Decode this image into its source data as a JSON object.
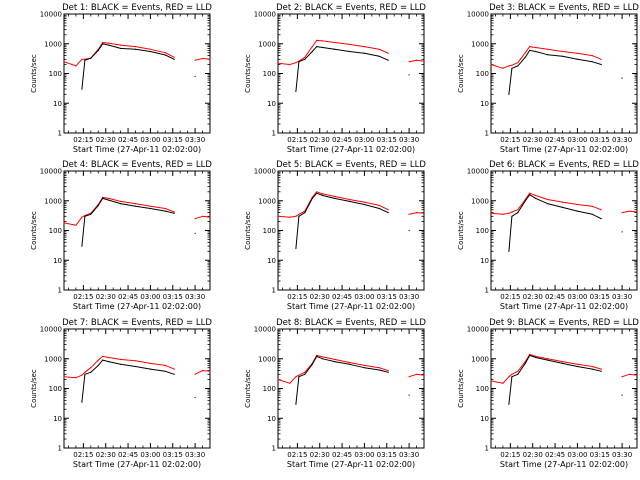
{
  "figure": {
    "background": "#ffffff",
    "axis_color": "#000000",
    "series_colors": {
      "events": "#000000",
      "lld": "#ff0000"
    }
  },
  "chart_data": [
    {
      "type": "line",
      "title": "Det 1: BLACK = Events, RED = LLD",
      "xlabel": "Start Time (27-Apr-11 02:02:00)",
      "ylabel": "Counts/sec",
      "y_scale": "log",
      "ylim": [
        1,
        10000
      ],
      "y_ticks": [
        1,
        10,
        100,
        1000,
        10000
      ],
      "y_tick_labels": [
        "1",
        "10",
        "100",
        "1000",
        "10000"
      ],
      "xlim": [
        "02:02",
        "03:40"
      ],
      "x_ticks": [
        "02:15",
        "02:30",
        "02:45",
        "03:00",
        "03:15",
        "03:30"
      ],
      "x": [
        "02:02",
        "02:10",
        "02:14",
        "02:16",
        "02:20",
        "02:25",
        "02:28",
        "02:32",
        "02:40",
        "02:50",
        "03:00",
        "03:10",
        "03:16",
        "03:27",
        "03:30",
        "03:35",
        "03:40"
      ],
      "series": [
        {
          "values": [
            null,
            null,
            30,
            280,
            330,
            600,
            1000,
            900,
            700,
            650,
            550,
            420,
            300,
            null,
            80,
            null,
            null
          ]
        },
        {
          "values": [
            250,
            180,
            300,
            300,
            330,
            650,
            1100,
            1050,
            900,
            800,
            650,
            500,
            350,
            null,
            280,
            320,
            300
          ]
        }
      ]
    },
    {
      "type": "line",
      "title": "Det 2: BLACK = Events, RED = LLD",
      "xlabel": "Start Time (27-Apr-11 02:02:00)",
      "ylabel": "Counts/sec",
      "y_scale": "log",
      "ylim": [
        1,
        10000
      ],
      "y_ticks": [
        1,
        10,
        100,
        1000,
        10000
      ],
      "y_tick_labels": [
        "1",
        "10",
        "100",
        "1000",
        "10000"
      ],
      "xlim": [
        "02:02",
        "03:40"
      ],
      "x_ticks": [
        "02:15",
        "02:30",
        "02:45",
        "03:00",
        "03:15",
        "03:30"
      ],
      "x": [
        "02:02",
        "02:10",
        "02:14",
        "02:16",
        "02:20",
        "02:25",
        "02:28",
        "02:32",
        "02:40",
        "02:50",
        "03:00",
        "03:10",
        "03:16",
        "03:27",
        "03:30",
        "03:35",
        "03:40"
      ],
      "series": [
        {
          "values": [
            null,
            null,
            25,
            250,
            300,
            550,
            800,
            750,
            650,
            550,
            480,
            380,
            280,
            null,
            90,
            null,
            null
          ]
        },
        {
          "values": [
            220,
            200,
            230,
            260,
            350,
            800,
            1300,
            1250,
            1100,
            950,
            800,
            650,
            480,
            null,
            250,
            280,
            260
          ]
        }
      ]
    },
    {
      "type": "line",
      "title": "Det 3: BLACK = Events, RED = LLD",
      "xlabel": "Start Time (27-Apr-11 02:02:00)",
      "ylabel": "Counts/sec",
      "y_scale": "log",
      "ylim": [
        1,
        10000
      ],
      "y_ticks": [
        1,
        10,
        100,
        1000,
        10000
      ],
      "y_tick_labels": [
        "1",
        "10",
        "100",
        "1000",
        "10000"
      ],
      "xlim": [
        "02:02",
        "03:40"
      ],
      "x_ticks": [
        "02:15",
        "02:30",
        "02:45",
        "03:00",
        "03:15",
        "03:30"
      ],
      "x": [
        "02:02",
        "02:10",
        "02:14",
        "02:16",
        "02:20",
        "02:25",
        "02:28",
        "02:32",
        "02:40",
        "02:50",
        "03:00",
        "03:10",
        "03:16",
        "03:27",
        "03:30",
        "03:35",
        "03:40"
      ],
      "series": [
        {
          "values": [
            null,
            null,
            20,
            150,
            180,
            350,
            600,
            550,
            430,
            380,
            300,
            250,
            200,
            null,
            70,
            null,
            null
          ]
        },
        {
          "values": [
            200,
            150,
            180,
            190,
            230,
            500,
            800,
            750,
            650,
            550,
            480,
            400,
            300,
            null,
            null,
            null,
            null
          ]
        }
      ]
    },
    {
      "type": "line",
      "title": "Det 4: BLACK = Events, RED = LLD",
      "xlabel": "Start Time (27-Apr-11 02:02:00)",
      "ylabel": "Counts/sec",
      "y_scale": "log",
      "ylim": [
        1,
        10000
      ],
      "y_ticks": [
        1,
        10,
        100,
        1000,
        10000
      ],
      "y_tick_labels": [
        "1",
        "10",
        "100",
        "1000",
        "10000"
      ],
      "xlim": [
        "02:02",
        "03:40"
      ],
      "x_ticks": [
        "02:15",
        "02:30",
        "02:45",
        "03:00",
        "03:15",
        "03:30"
      ],
      "x": [
        "02:02",
        "02:10",
        "02:14",
        "02:16",
        "02:20",
        "02:25",
        "02:28",
        "02:32",
        "02:40",
        "02:50",
        "03:00",
        "03:10",
        "03:16",
        "03:27",
        "03:30",
        "03:35",
        "03:40"
      ],
      "series": [
        {
          "values": [
            null,
            null,
            30,
            300,
            350,
            700,
            1200,
            1050,
            800,
            650,
            550,
            450,
            380,
            null,
            80,
            null,
            null
          ]
        },
        {
          "values": [
            180,
            150,
            280,
            320,
            380,
            750,
            1300,
            1200,
            950,
            800,
            650,
            550,
            420,
            null,
            250,
            300,
            280
          ]
        }
      ]
    },
    {
      "type": "line",
      "title": "Det 5: BLACK = Events, RED = LLD",
      "xlabel": "Start Time (27-Apr-11 02:02:00)",
      "ylabel": "Counts/sec",
      "y_scale": "log",
      "ylim": [
        1,
        10000
      ],
      "y_ticks": [
        1,
        10,
        100,
        1000,
        10000
      ],
      "y_tick_labels": [
        "1",
        "10",
        "100",
        "1000",
        "10000"
      ],
      "xlim": [
        "02:02",
        "03:40"
      ],
      "x_ticks": [
        "02:15",
        "02:30",
        "02:45",
        "03:00",
        "03:15",
        "03:30"
      ],
      "x": [
        "02:02",
        "02:10",
        "02:14",
        "02:16",
        "02:20",
        "02:25",
        "02:28",
        "02:32",
        "02:40",
        "02:50",
        "03:00",
        "03:10",
        "03:16",
        "03:27",
        "03:30",
        "03:35",
        "03:40"
      ],
      "series": [
        {
          "values": [
            null,
            null,
            25,
            300,
            400,
            1200,
            1800,
            1500,
            1200,
            950,
            750,
            550,
            400,
            null,
            100,
            null,
            null
          ]
        },
        {
          "values": [
            300,
            280,
            300,
            350,
            450,
            1300,
            2000,
            1700,
            1400,
            1100,
            900,
            700,
            500,
            null,
            350,
            400,
            380
          ]
        }
      ]
    },
    {
      "type": "line",
      "title": "Det 6: BLACK = Events, RED = LLD",
      "xlabel": "Start Time (27-Apr-11 02:02:00)",
      "ylabel": "Counts/sec",
      "y_scale": "log",
      "ylim": [
        1,
        10000
      ],
      "y_ticks": [
        1,
        10,
        100,
        1000,
        10000
      ],
      "y_tick_labels": [
        "1",
        "10",
        "100",
        "1000",
        "10000"
      ],
      "xlim": [
        "02:02",
        "03:40"
      ],
      "x_ticks": [
        "02:15",
        "02:30",
        "02:45",
        "03:00",
        "03:15",
        "03:30"
      ],
      "x": [
        "02:02",
        "02:10",
        "02:14",
        "02:16",
        "02:20",
        "02:25",
        "02:28",
        "02:32",
        "02:40",
        "02:50",
        "03:00",
        "03:10",
        "03:16",
        "03:27",
        "03:30",
        "03:35",
        "03:40"
      ],
      "series": [
        {
          "values": [
            null,
            null,
            20,
            300,
            400,
            1000,
            1600,
            1200,
            800,
            600,
            450,
            350,
            250,
            null,
            90,
            null,
            null
          ]
        },
        {
          "values": [
            380,
            350,
            380,
            420,
            500,
            1100,
            1800,
            1500,
            1100,
            900,
            750,
            650,
            500,
            null,
            400,
            450,
            420
          ]
        }
      ]
    },
    {
      "type": "line",
      "title": "Det 7: BLACK = Events, RED = LLD",
      "xlabel": "Start Time (27-Apr-11 02:02:00)",
      "ylabel": "Counts/sec",
      "y_scale": "log",
      "ylim": [
        1,
        10000
      ],
      "y_ticks": [
        1,
        10,
        100,
        1000,
        10000
      ],
      "y_tick_labels": [
        "1",
        "10",
        "100",
        "1000",
        "10000"
      ],
      "xlim": [
        "02:02",
        "03:40"
      ],
      "x_ticks": [
        "02:15",
        "02:30",
        "02:45",
        "03:00",
        "03:15",
        "03:30"
      ],
      "x": [
        "02:02",
        "02:10",
        "02:14",
        "02:16",
        "02:20",
        "02:25",
        "02:28",
        "02:32",
        "02:40",
        "02:50",
        "03:00",
        "03:10",
        "03:16",
        "03:27",
        "03:30",
        "03:35",
        "03:40"
      ],
      "series": [
        {
          "values": [
            null,
            null,
            35,
            300,
            350,
            600,
            900,
            800,
            650,
            550,
            450,
            380,
            300,
            null,
            50,
            null,
            null
          ]
        },
        {
          "values": [
            250,
            230,
            280,
            350,
            500,
            900,
            1200,
            1100,
            950,
            850,
            700,
            600,
            450,
            null,
            300,
            400,
            380
          ]
        }
      ]
    },
    {
      "type": "line",
      "title": "Det 8: BLACK = Events, RED = LLD",
      "xlabel": "Start Time (27-Apr-11 02:02:00)",
      "ylabel": "Counts/sec",
      "y_scale": "log",
      "ylim": [
        1,
        10000
      ],
      "y_ticks": [
        1,
        10,
        100,
        1000,
        10000
      ],
      "y_tick_labels": [
        "1",
        "10",
        "100",
        "1000",
        "10000"
      ],
      "xlim": [
        "02:02",
        "03:40"
      ],
      "x_ticks": [
        "02:15",
        "02:30",
        "02:45",
        "03:00",
        "03:15",
        "03:30"
      ],
      "x": [
        "02:02",
        "02:10",
        "02:14",
        "02:16",
        "02:20",
        "02:25",
        "02:28",
        "02:32",
        "02:40",
        "02:50",
        "03:00",
        "03:10",
        "03:16",
        "03:27",
        "03:30",
        "03:35",
        "03:40"
      ],
      "series": [
        {
          "values": [
            null,
            null,
            30,
            250,
            300,
            650,
            1200,
            1000,
            800,
            650,
            500,
            420,
            350,
            null,
            60,
            null,
            null
          ]
        },
        {
          "values": [
            200,
            150,
            250,
            280,
            350,
            700,
            1300,
            1150,
            950,
            750,
            600,
            500,
            400,
            null,
            250,
            300,
            280
          ]
        }
      ]
    },
    {
      "type": "line",
      "title": "Det 9: BLACK = Events, RED = LLD",
      "xlabel": "Start Time (27-Apr-11 02:02:00)",
      "ylabel": "Counts/sec",
      "y_scale": "log",
      "ylim": [
        1,
        10000
      ],
      "y_ticks": [
        1,
        10,
        100,
        1000,
        10000
      ],
      "y_tick_labels": [
        "1",
        "10",
        "100",
        "1000",
        "10000"
      ],
      "xlim": [
        "02:02",
        "03:40"
      ],
      "x_ticks": [
        "02:15",
        "02:30",
        "02:45",
        "03:00",
        "03:15",
        "03:30"
      ],
      "x": [
        "02:02",
        "02:10",
        "02:14",
        "02:16",
        "02:20",
        "02:25",
        "02:28",
        "02:32",
        "02:40",
        "02:50",
        "03:00",
        "03:10",
        "03:16",
        "03:27",
        "03:30",
        "03:35",
        "03:40"
      ],
      "series": [
        {
          "values": [
            null,
            null,
            30,
            250,
            300,
            700,
            1300,
            1100,
            900,
            700,
            550,
            450,
            380,
            null,
            60,
            null,
            null
          ]
        },
        {
          "values": [
            180,
            150,
            250,
            300,
            380,
            800,
            1400,
            1200,
            1000,
            800,
            650,
            550,
            450,
            null,
            250,
            300,
            280
          ]
        }
      ]
    }
  ]
}
